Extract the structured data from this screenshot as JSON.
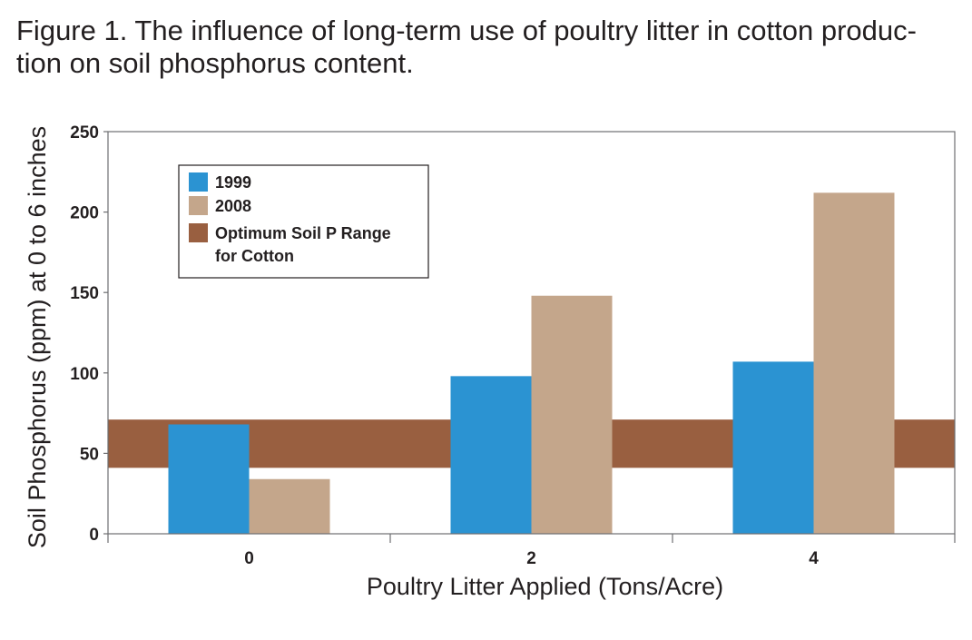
{
  "caption": {
    "line1": "Figure 1. The influence of long-term use of poultry litter in cotton produc-",
    "line2": "tion on soil phosphorus content."
  },
  "colors": {
    "series_1999": "#2b93d2",
    "series_2008": "#c4a68b",
    "optimum_band": "#995f40",
    "axis": "#6d6e71"
  },
  "chart_data": {
    "type": "bar",
    "categories": [
      "0",
      "2",
      "4"
    ],
    "series": [
      {
        "name": "1999",
        "values": [
          68,
          98,
          107
        ]
      },
      {
        "name": "2008",
        "values": [
          34,
          148,
          212
        ]
      }
    ],
    "band": {
      "name": "Optimum Soil P Range for Cotton",
      "from": 41,
      "to": 71
    },
    "xlabel": "Poultry Litter Applied (Tons/Acre)",
    "ylabel": "Soil Phosphorus (ppm) at 0 to 6 inches",
    "ylim": [
      0,
      250
    ],
    "yticks": [
      0,
      50,
      100,
      150,
      200,
      250
    ],
    "grid": false,
    "legend": {
      "placement": "top-left",
      "entries": [
        {
          "label_lines": [
            "1999"
          ]
        },
        {
          "label_lines": [
            "2008"
          ]
        },
        {
          "label_lines": [
            "Optimum Soil P Range",
            "for Cotton"
          ]
        }
      ]
    }
  }
}
